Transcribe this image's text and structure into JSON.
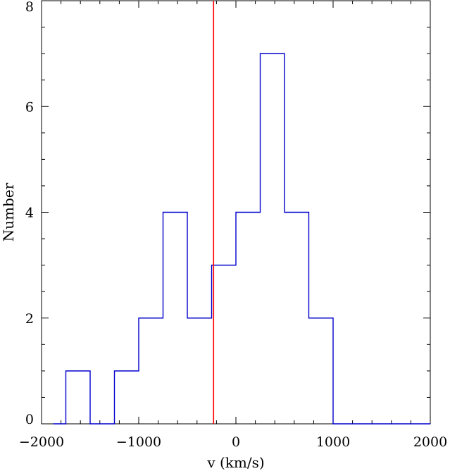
{
  "chart_data": {
    "type": "histogram",
    "title": "",
    "xlabel": "v (km/s)",
    "ylabel": "Number",
    "xlim": [
      -2000,
      2000
    ],
    "ylim": [
      0,
      8
    ],
    "x_ticks": [
      -2000,
      -1000,
      0,
      1000,
      2000
    ],
    "x_tick_labels": [
      "−2000",
      "−1000",
      "0",
      "1000",
      "2000"
    ],
    "y_ticks": [
      0,
      2,
      4,
      6,
      8
    ],
    "y_tick_labels": [
      "0",
      "2",
      "4",
      "6",
      "8"
    ],
    "x_minor_step": 200,
    "y_minor_step": 0.5,
    "grid": false,
    "bin_edges": [
      -1750,
      -1500,
      -1250,
      -1000,
      -750,
      -500,
      -250,
      0,
      250,
      500,
      750,
      1000
    ],
    "counts": [
      1,
      0,
      1,
      2,
      4,
      2,
      3,
      4,
      7,
      4,
      2
    ],
    "baseline_left_start": -1880,
    "baseline_right_end": 2000,
    "reference_line": {
      "x": -230,
      "color": "#ff0000"
    },
    "series_color": "#0000cc"
  }
}
